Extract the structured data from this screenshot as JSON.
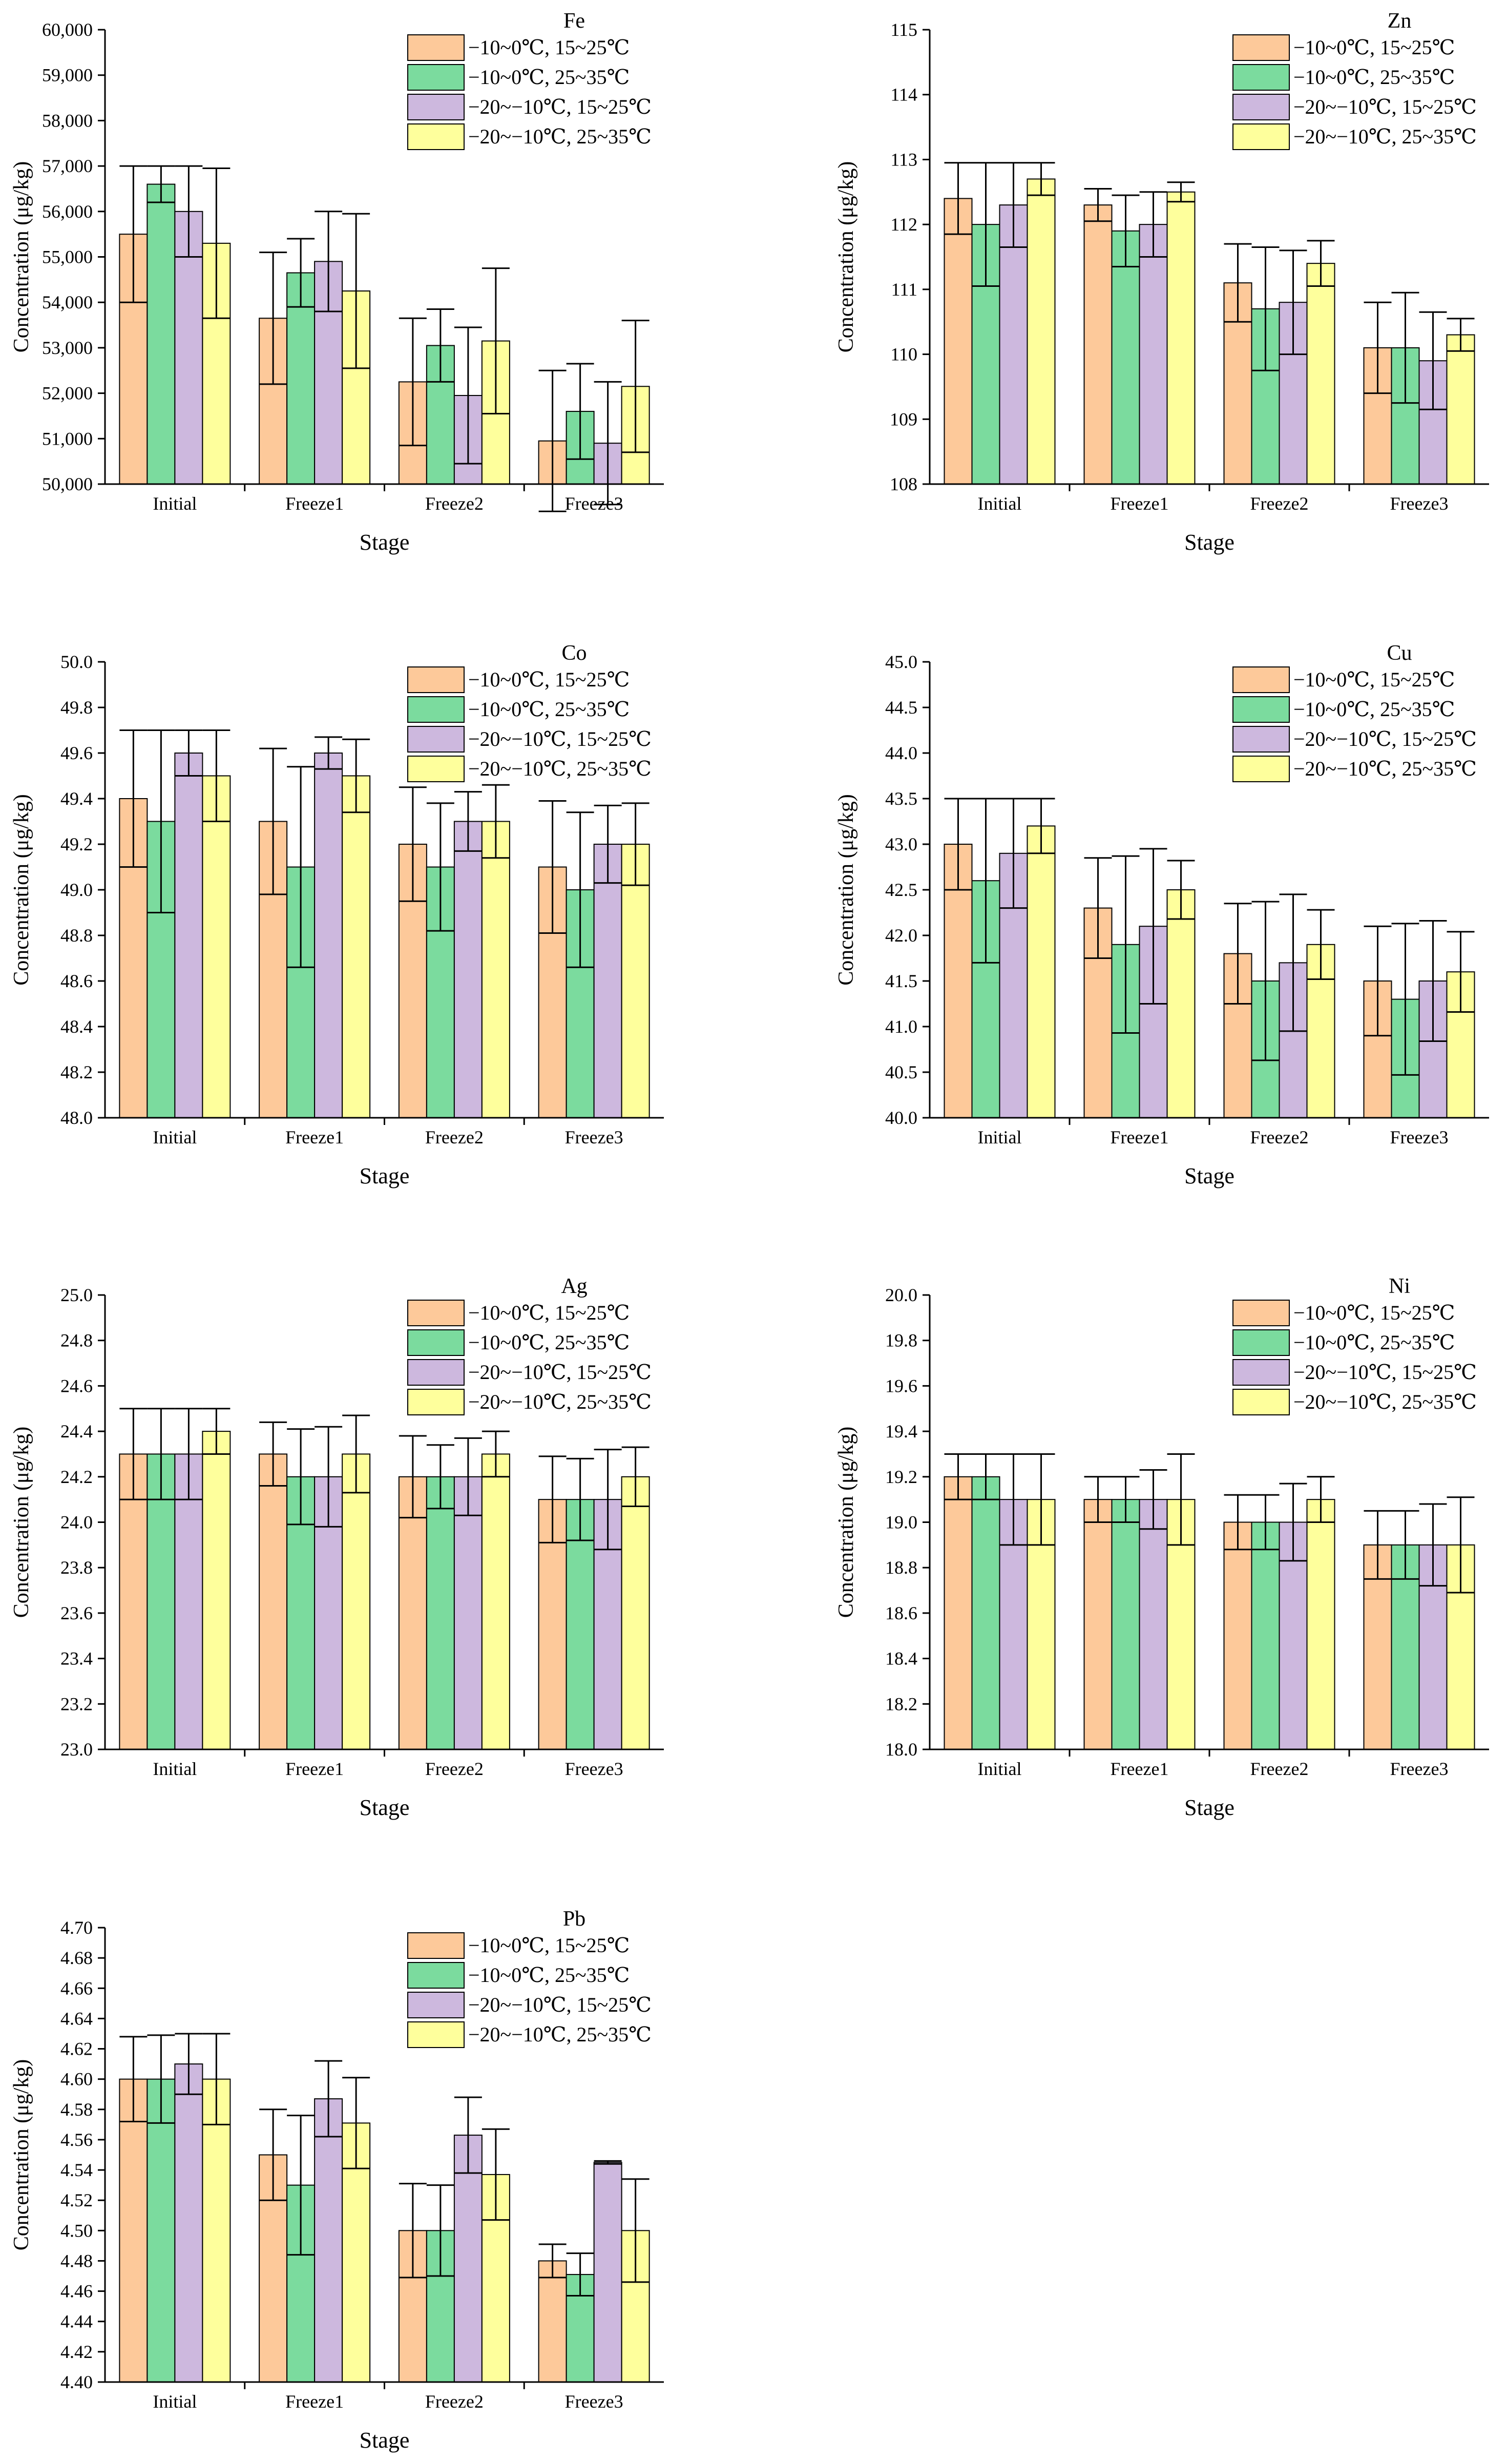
{
  "colors": {
    "s1": "#FDC99A",
    "s2": "#7BDB9E",
    "s3": "#CDB8DE",
    "s4": "#FEFF9C",
    "axis": "#000000"
  },
  "chart_data": [
    {
      "type": "bar",
      "title": "Fe",
      "xlabel": "Stage",
      "ylabel": "Concentration (μg/kg)",
      "categories": [
        "Initial",
        "Freeze1",
        "Freeze2",
        "Freeze3"
      ],
      "ylim": [
        50000,
        60000
      ],
      "yticks": [
        50000,
        51000,
        52000,
        53000,
        54000,
        55000,
        56000,
        57000,
        58000,
        59000,
        60000
      ],
      "ytick_labels": [
        "50,000",
        "51,000",
        "52,000",
        "53,000",
        "54,000",
        "55,000",
        "56,000",
        "57,000",
        "58,000",
        "59,000",
        "60,000"
      ],
      "series": [
        {
          "name": "−10~0℃, 15~25℃",
          "values": [
            55500,
            53650,
            52250,
            50950
          ],
          "errors": [
            1500,
            1450,
            1400,
            1550
          ]
        },
        {
          "name": "−10~0℃, 25~35℃",
          "values": [
            56600,
            54650,
            53050,
            51600
          ],
          "errors": [
            400,
            750,
            800,
            1050
          ]
        },
        {
          "name": "−20~−10℃, 15~25℃",
          "values": [
            56000,
            54900,
            51950,
            50900
          ],
          "errors": [
            1000,
            1100,
            1500,
            1350
          ]
        },
        {
          "name": "−20~−10℃, 25~35℃",
          "values": [
            55300,
            54250,
            53150,
            52150
          ],
          "errors": [
            1650,
            1700,
            1600,
            1450
          ]
        }
      ]
    },
    {
      "type": "bar",
      "title": "Zn",
      "xlabel": "Stage",
      "ylabel": "Concentration (μg/kg)",
      "categories": [
        "Initial",
        "Freeze1",
        "Freeze2",
        "Freeze3"
      ],
      "ylim": [
        108,
        115
      ],
      "yticks": [
        108,
        109,
        110,
        111,
        112,
        113,
        114,
        115
      ],
      "ytick_labels": [
        "108",
        "109",
        "110",
        "111",
        "112",
        "113",
        "114",
        "115"
      ],
      "series": [
        {
          "name": "−10~0℃, 15~25℃",
          "values": [
            112.4,
            112.3,
            111.1,
            110.1
          ],
          "errors": [
            0.55,
            0.25,
            0.6,
            0.7
          ]
        },
        {
          "name": "−10~0℃, 25~35℃",
          "values": [
            112.0,
            111.9,
            110.7,
            110.1
          ],
          "errors": [
            0.95,
            0.55,
            0.95,
            0.85
          ]
        },
        {
          "name": "−20~−10℃, 15~25℃",
          "values": [
            112.3,
            112.0,
            110.8,
            109.9
          ],
          "errors": [
            0.65,
            0.5,
            0.8,
            0.75
          ]
        },
        {
          "name": "−20~−10℃, 25~35℃",
          "values": [
            112.7,
            112.5,
            111.4,
            110.3
          ],
          "errors": [
            0.25,
            0.15,
            0.35,
            0.25
          ]
        }
      ]
    },
    {
      "type": "bar",
      "title": "Co",
      "xlabel": "Stage",
      "ylabel": "Concentration (μg/kg)",
      "categories": [
        "Initial",
        "Freeze1",
        "Freeze2",
        "Freeze3"
      ],
      "ylim": [
        48.0,
        50.0
      ],
      "yticks": [
        48.0,
        48.2,
        48.4,
        48.6,
        48.8,
        49.0,
        49.2,
        49.4,
        49.6,
        49.8,
        50.0
      ],
      "ytick_labels": [
        "48.0",
        "48.2",
        "48.4",
        "48.6",
        "48.8",
        "49.0",
        "49.2",
        "49.4",
        "49.6",
        "49.8",
        "50.0"
      ],
      "series": [
        {
          "name": "−10~0℃, 15~25℃",
          "values": [
            49.4,
            49.3,
            49.2,
            49.1
          ],
          "errors": [
            0.3,
            0.32,
            0.25,
            0.29
          ]
        },
        {
          "name": "−10~0℃, 25~35℃",
          "values": [
            49.3,
            49.1,
            49.1,
            49.0
          ],
          "errors": [
            0.4,
            0.44,
            0.28,
            0.34
          ]
        },
        {
          "name": "−20~−10℃, 15~25℃",
          "values": [
            49.6,
            49.6,
            49.3,
            49.2
          ],
          "errors": [
            0.1,
            0.07,
            0.13,
            0.17
          ]
        },
        {
          "name": "−20~−10℃, 25~35℃",
          "values": [
            49.5,
            49.5,
            49.3,
            49.2
          ],
          "errors": [
            0.2,
            0.16,
            0.16,
            0.18
          ]
        }
      ]
    },
    {
      "type": "bar",
      "title": "Cu",
      "xlabel": "Stage",
      "ylabel": "Concentration (μg/kg)",
      "categories": [
        "Initial",
        "Freeze1",
        "Freeze2",
        "Freeze3"
      ],
      "ylim": [
        40.0,
        45.0
      ],
      "yticks": [
        40.0,
        40.5,
        41.0,
        41.5,
        42.0,
        42.5,
        43.0,
        43.5,
        44.0,
        44.5,
        45.0
      ],
      "ytick_labels": [
        "40.0",
        "40.5",
        "41.0",
        "41.5",
        "42.0",
        "42.5",
        "43.0",
        "43.5",
        "44.0",
        "44.5",
        "45.0"
      ],
      "series": [
        {
          "name": "−10~0℃, 15~25℃",
          "values": [
            43.0,
            42.3,
            41.8,
            41.5
          ],
          "errors": [
            0.5,
            0.55,
            0.55,
            0.6
          ]
        },
        {
          "name": "−10~0℃, 25~35℃",
          "values": [
            42.6,
            41.9,
            41.5,
            41.3
          ],
          "errors": [
            0.9,
            0.97,
            0.87,
            0.83
          ]
        },
        {
          "name": "−20~−10℃, 15~25℃",
          "values": [
            42.9,
            42.1,
            41.7,
            41.5
          ],
          "errors": [
            0.6,
            0.85,
            0.75,
            0.66
          ]
        },
        {
          "name": "−20~−10℃, 25~35℃",
          "values": [
            43.2,
            42.5,
            41.9,
            41.6
          ],
          "errors": [
            0.3,
            0.32,
            0.38,
            0.44
          ]
        }
      ]
    },
    {
      "type": "bar",
      "title": "Ag",
      "xlabel": "Stage",
      "ylabel": "Concentration (μg/kg)",
      "categories": [
        "Initial",
        "Freeze1",
        "Freeze2",
        "Freeze3"
      ],
      "ylim": [
        23.0,
        25.0
      ],
      "yticks": [
        23.0,
        23.2,
        23.4,
        23.6,
        23.8,
        24.0,
        24.2,
        24.4,
        24.6,
        24.8,
        25.0
      ],
      "ytick_labels": [
        "23.0",
        "23.2",
        "23.4",
        "23.6",
        "23.8",
        "24.0",
        "24.2",
        "24.4",
        "24.6",
        "24.8",
        "25.0"
      ],
      "series": [
        {
          "name": "−10~0℃, 15~25℃",
          "values": [
            24.3,
            24.3,
            24.2,
            24.1
          ],
          "errors": [
            0.2,
            0.14,
            0.18,
            0.19
          ]
        },
        {
          "name": "−10~0℃, 25~35℃",
          "values": [
            24.3,
            24.2,
            24.2,
            24.1
          ],
          "errors": [
            0.2,
            0.21,
            0.14,
            0.18
          ]
        },
        {
          "name": "−20~−10℃, 15~25℃",
          "values": [
            24.3,
            24.2,
            24.2,
            24.1
          ],
          "errors": [
            0.2,
            0.22,
            0.17,
            0.22
          ]
        },
        {
          "name": "−20~−10℃, 25~35℃",
          "values": [
            24.4,
            24.3,
            24.3,
            24.2
          ],
          "errors": [
            0.1,
            0.17,
            0.1,
            0.13
          ]
        }
      ]
    },
    {
      "type": "bar",
      "title": "Ni",
      "xlabel": "Stage",
      "ylabel": "Concentration (μg/kg)",
      "categories": [
        "Initial",
        "Freeze1",
        "Freeze2",
        "Freeze3"
      ],
      "ylim": [
        18.0,
        20.0
      ],
      "yticks": [
        18.0,
        18.2,
        18.4,
        18.6,
        18.8,
        19.0,
        19.2,
        19.4,
        19.6,
        19.8,
        20.0
      ],
      "ytick_labels": [
        "18.0",
        "18.2",
        "18.4",
        "18.6",
        "18.8",
        "19.0",
        "19.2",
        "19.4",
        "19.6",
        "19.8",
        "20.0"
      ],
      "series": [
        {
          "name": "−10~0℃, 15~25℃",
          "values": [
            19.2,
            19.1,
            19.0,
            18.9
          ],
          "errors": [
            0.1,
            0.1,
            0.12,
            0.15
          ]
        },
        {
          "name": "−10~0℃, 25~35℃",
          "values": [
            19.2,
            19.1,
            19.0,
            18.9
          ],
          "errors": [
            0.1,
            0.1,
            0.12,
            0.15
          ]
        },
        {
          "name": "−20~−10℃, 15~25℃",
          "values": [
            19.1,
            19.1,
            19.0,
            18.9
          ],
          "errors": [
            0.2,
            0.13,
            0.17,
            0.18
          ]
        },
        {
          "name": "−20~−10℃, 25~35℃",
          "values": [
            19.1,
            19.1,
            19.1,
            18.9
          ],
          "errors": [
            0.2,
            0.2,
            0.1,
            0.21
          ]
        }
      ]
    },
    {
      "type": "bar",
      "title": "Pb",
      "xlabel": "Stage",
      "ylabel": "Concentration (μg/kg)",
      "categories": [
        "Initial",
        "Freeze1",
        "Freeze2",
        "Freeze3"
      ],
      "ylim": [
        4.4,
        4.7
      ],
      "yticks": [
        4.4,
        4.42,
        4.44,
        4.46,
        4.48,
        4.5,
        4.52,
        4.54,
        4.56,
        4.58,
        4.6,
        4.62,
        4.64,
        4.66,
        4.68,
        4.7
      ],
      "ytick_labels": [
        "4.40",
        "4.42",
        "4.44",
        "4.46",
        "4.48",
        "4.50",
        "4.52",
        "4.54",
        "4.56",
        "4.58",
        "4.60",
        "4.62",
        "4.64",
        "4.66",
        "4.68",
        "4.70"
      ],
      "series": [
        {
          "name": "−10~0℃, 15~25℃",
          "values": [
            4.6,
            4.55,
            4.5,
            4.48
          ],
          "errors": [
            0.028,
            0.03,
            0.031,
            0.011
          ]
        },
        {
          "name": "−10~0℃, 25~35℃",
          "values": [
            4.6,
            4.53,
            4.5,
            4.471
          ],
          "errors": [
            0.029,
            0.046,
            0.03,
            0.014
          ]
        },
        {
          "name": "−20~−10℃, 15~25℃",
          "values": [
            4.61,
            4.587,
            4.563,
            4.545
          ],
          "errors": [
            0.02,
            0.025,
            0.025,
            0.001
          ]
        },
        {
          "name": "−20~−10℃, 25~35℃",
          "values": [
            4.6,
            4.571,
            4.537,
            4.5
          ],
          "errors": [
            0.03,
            0.03,
            0.03,
            0.034
          ]
        }
      ]
    }
  ]
}
